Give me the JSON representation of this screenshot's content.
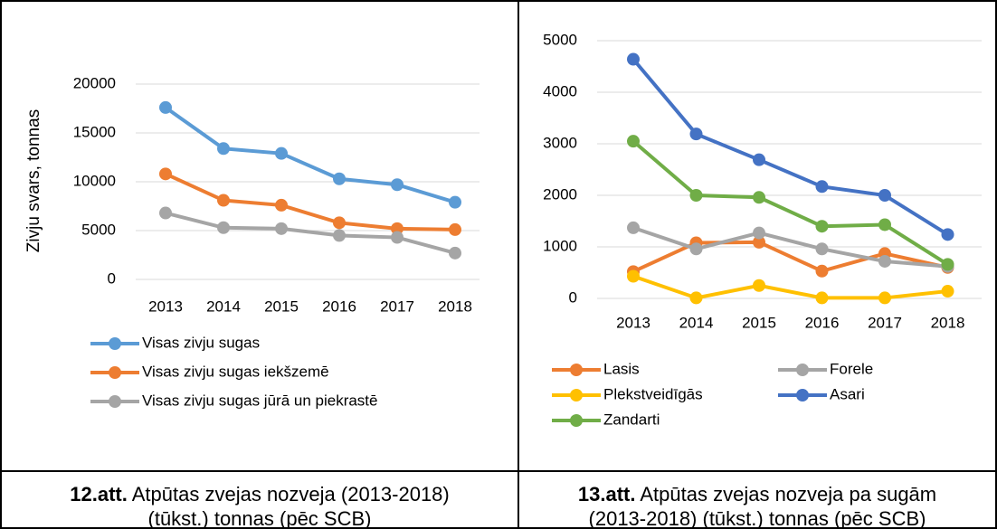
{
  "chart_data": [
    {
      "type": "line",
      "ylabel": "Zivju svars, tonnas",
      "categories": [
        "2013",
        "2014",
        "2015",
        "2016",
        "2017",
        "2018"
      ],
      "ylim": [
        0,
        20000
      ],
      "yticks": [
        0,
        5000,
        10000,
        15000,
        20000
      ],
      "grid": true,
      "series": [
        {
          "name": "Visas zivju sugas",
          "color": "#5b9bd5",
          "values": [
            17600,
            13400,
            12900,
            10300,
            9700,
            7900
          ]
        },
        {
          "name": "Visas zivju sugas iekšzemē",
          "color": "#ed7d31",
          "values": [
            10800,
            8100,
            7600,
            5800,
            5200,
            5100
          ]
        },
        {
          "name": "Visas zivju sugas jūrā un piekrastē",
          "color": "#a5a5a5",
          "values": [
            6800,
            5300,
            5200,
            4500,
            4300,
            2700
          ]
        }
      ]
    },
    {
      "type": "line",
      "categories": [
        "2013",
        "2014",
        "2015",
        "2016",
        "2017",
        "2018"
      ],
      "ylim": [
        0,
        5000
      ],
      "yticks": [
        0,
        1000,
        2000,
        3000,
        4000,
        5000
      ],
      "grid": true,
      "series": [
        {
          "name": "Lasis",
          "color": "#ed7d31",
          "values": [
            520,
            1080,
            1090,
            530,
            870,
            600
          ]
        },
        {
          "name": "Forele",
          "color": "#a5a5a5",
          "values": [
            1370,
            960,
            1270,
            960,
            720,
            620
          ]
        },
        {
          "name": "Plekstveidīgās",
          "color": "#ffc000",
          "values": [
            430,
            10,
            250,
            10,
            10,
            140
          ]
        },
        {
          "name": "Asari",
          "color": "#4472c4",
          "values": [
            4640,
            3190,
            2690,
            2170,
            2000,
            1240
          ]
        },
        {
          "name": "Zandarti",
          "color": "#70ad47",
          "values": [
            3050,
            2000,
            1960,
            1400,
            1430,
            660
          ]
        }
      ]
    }
  ],
  "captions": [
    {
      "label": "12.att.",
      "lines": [
        "Atpūtas zvejas nozveja (2013-2018)",
        "(tūkst.) tonnas (pēc SCB)"
      ]
    },
    {
      "label": "13.att.",
      "lines": [
        "Atpūtas zvejas nozveja pa sugām",
        "(2013-2018) (tūkst.) tonnas (pēc SCB)"
      ]
    }
  ]
}
